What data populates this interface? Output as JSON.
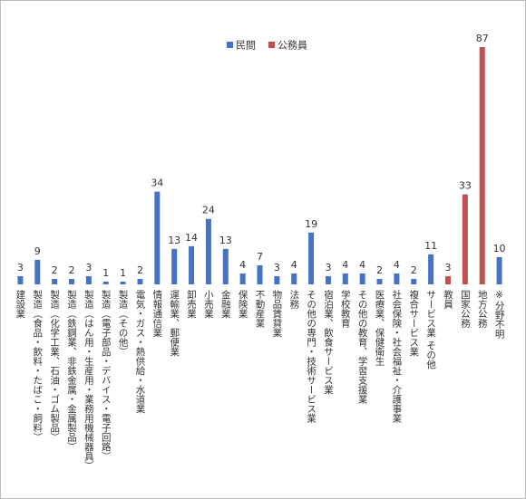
{
  "chart_data": {
    "type": "bar",
    "categories": [
      "建設業",
      "製造（食品・飲料・たばこ・飼料）",
      "製造（化学工業、石油・ゴム製品）",
      "製造（鉄鋼業、非鉄金属・金属製品）",
      "製造（はん用・生産用・業務用機械器具）",
      "製造（電子部品・デバイス・電子回路）",
      "製造（その他）",
      "電気・ガス・熱供給・水道業",
      "情報通信業",
      "運輸業、郵便業",
      "卸売業",
      "小売業",
      "金融業",
      "保険業",
      "不動産業",
      "物品賃貸業",
      "法務",
      "その他の専門・技術サービス業",
      "宿泊業、飲食サービス業",
      "学校教育",
      "その他の教育、学習支援業",
      "医療業、保健衛生",
      "社会保険・社会福祉・介護事業",
      "複合サービス業",
      "サービス業 その他",
      "教員",
      "国家公務",
      "地方公務",
      "※分野不明"
    ],
    "series": [
      {
        "name": "民間",
        "color": "#4472c4",
        "values": [
          3,
          9,
          2,
          2,
          3,
          1,
          1,
          2,
          34,
          13,
          14,
          24,
          13,
          4,
          7,
          3,
          4,
          19,
          3,
          4,
          4,
          2,
          4,
          2,
          11,
          null,
          null,
          null,
          10
        ]
      },
      {
        "name": "公務員",
        "color": "#c0504d",
        "values": [
          null,
          null,
          null,
          null,
          null,
          null,
          null,
          null,
          null,
          null,
          null,
          null,
          null,
          null,
          null,
          null,
          null,
          null,
          null,
          null,
          null,
          null,
          null,
          null,
          null,
          3,
          33,
          87,
          null
        ]
      }
    ],
    "ylim": [
      0,
      87
    ],
    "legend": "top"
  }
}
